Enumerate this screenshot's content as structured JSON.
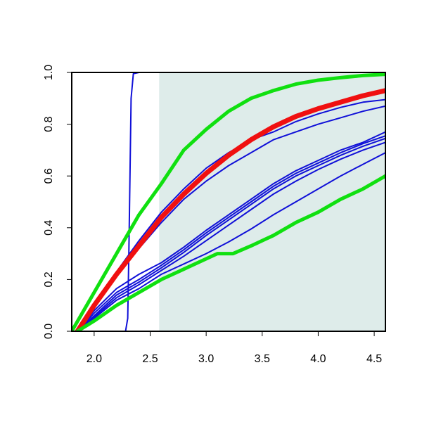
{
  "chart_data": {
    "type": "line",
    "title": "",
    "xlabel": "",
    "ylabel": "",
    "xlim": [
      1.8,
      4.6
    ],
    "ylim": [
      0.0,
      1.0
    ],
    "x_ticks": [
      2.0,
      2.5,
      3.0,
      3.5,
      4.0,
      4.5
    ],
    "x_tick_labels": [
      "2.0",
      "2.5",
      "3.0",
      "3.5",
      "4.0",
      "4.5"
    ],
    "y_ticks": [
      0.0,
      0.2,
      0.4,
      0.6,
      0.8,
      1.0
    ],
    "y_tick_labels": [
      "0.0",
      "0.2",
      "0.4",
      "0.6",
      "0.8",
      "1.0"
    ],
    "grid": false,
    "legend": "none",
    "shaded_region": {
      "x_from": 2.58,
      "x_to": 4.6,
      "color": "#deecea"
    },
    "colors": {
      "blue": "#1010d8",
      "red": "#f01010",
      "green": "#10e010"
    },
    "series": [
      {
        "color": "blue",
        "width": 2,
        "points": [
          [
            1.8,
            0.0
          ],
          [
            2.28,
            0.0
          ],
          [
            2.3,
            0.05
          ],
          [
            2.31,
            0.3
          ],
          [
            2.32,
            0.6
          ],
          [
            2.33,
            0.9
          ],
          [
            2.35,
            0.995
          ],
          [
            2.4,
            1.0
          ],
          [
            4.6,
            1.0
          ]
        ]
      },
      {
        "color": "blue",
        "width": 2,
        "points": [
          [
            1.85,
            0.0
          ],
          [
            2.0,
            0.104
          ],
          [
            2.2,
            0.23
          ],
          [
            2.4,
            0.35
          ],
          [
            2.6,
            0.46
          ],
          [
            2.8,
            0.55
          ],
          [
            3.0,
            0.63
          ],
          [
            3.2,
            0.69
          ],
          [
            3.4,
            0.74
          ],
          [
            3.6,
            0.77
          ],
          [
            3.8,
            0.81
          ],
          [
            4.0,
            0.84
          ],
          [
            4.2,
            0.865
          ],
          [
            4.4,
            0.885
          ],
          [
            4.6,
            0.895
          ]
        ]
      },
      {
        "color": "blue",
        "width": 2,
        "points": [
          [
            1.85,
            0.0
          ],
          [
            2.0,
            0.1
          ],
          [
            2.2,
            0.22
          ],
          [
            2.4,
            0.32
          ],
          [
            2.6,
            0.42
          ],
          [
            2.8,
            0.51
          ],
          [
            3.0,
            0.58
          ],
          [
            3.2,
            0.64
          ],
          [
            3.4,
            0.69
          ],
          [
            3.6,
            0.74
          ],
          [
            3.8,
            0.77
          ],
          [
            4.0,
            0.8
          ],
          [
            4.2,
            0.825
          ],
          [
            4.4,
            0.85
          ],
          [
            4.6,
            0.87
          ]
        ]
      },
      {
        "color": "blue",
        "width": 2,
        "points": [
          [
            1.85,
            0.0
          ],
          [
            2.0,
            0.08
          ],
          [
            2.2,
            0.165
          ],
          [
            2.4,
            0.22
          ],
          [
            2.6,
            0.265
          ],
          [
            2.8,
            0.325
          ],
          [
            3.0,
            0.39
          ],
          [
            3.2,
            0.45
          ],
          [
            3.4,
            0.51
          ],
          [
            3.6,
            0.57
          ],
          [
            3.8,
            0.62
          ],
          [
            4.0,
            0.66
          ],
          [
            4.2,
            0.7
          ],
          [
            4.4,
            0.73
          ],
          [
            4.6,
            0.77
          ]
        ]
      },
      {
        "color": "blue",
        "width": 2,
        "points": [
          [
            1.85,
            0.0
          ],
          [
            2.0,
            0.07
          ],
          [
            2.2,
            0.15
          ],
          [
            2.4,
            0.2
          ],
          [
            2.6,
            0.255
          ],
          [
            2.8,
            0.315
          ],
          [
            3.0,
            0.38
          ],
          [
            3.2,
            0.44
          ],
          [
            3.4,
            0.5
          ],
          [
            3.6,
            0.56
          ],
          [
            3.8,
            0.61
          ],
          [
            4.0,
            0.65
          ],
          [
            4.2,
            0.69
          ],
          [
            4.4,
            0.725
          ],
          [
            4.6,
            0.755
          ]
        ]
      },
      {
        "color": "blue",
        "width": 2,
        "points": [
          [
            1.85,
            0.0
          ],
          [
            2.0,
            0.06
          ],
          [
            2.2,
            0.14
          ],
          [
            2.4,
            0.19
          ],
          [
            2.6,
            0.245
          ],
          [
            2.8,
            0.305
          ],
          [
            3.0,
            0.37
          ],
          [
            3.2,
            0.43
          ],
          [
            3.4,
            0.49
          ],
          [
            3.6,
            0.55
          ],
          [
            3.8,
            0.6
          ],
          [
            4.0,
            0.64
          ],
          [
            4.2,
            0.68
          ],
          [
            4.4,
            0.715
          ],
          [
            4.6,
            0.745
          ]
        ]
      },
      {
        "color": "blue",
        "width": 2,
        "points": [
          [
            1.85,
            0.0
          ],
          [
            2.0,
            0.055
          ],
          [
            2.2,
            0.13
          ],
          [
            2.4,
            0.18
          ],
          [
            2.6,
            0.235
          ],
          [
            2.8,
            0.29
          ],
          [
            3.0,
            0.35
          ],
          [
            3.2,
            0.41
          ],
          [
            3.4,
            0.47
          ],
          [
            3.6,
            0.53
          ],
          [
            3.8,
            0.58
          ],
          [
            4.0,
            0.625
          ],
          [
            4.2,
            0.665
          ],
          [
            4.4,
            0.7
          ],
          [
            4.6,
            0.73
          ]
        ]
      },
      {
        "color": "blue",
        "width": 2,
        "points": [
          [
            1.85,
            0.0
          ],
          [
            2.0,
            0.05
          ],
          [
            2.2,
            0.12
          ],
          [
            2.4,
            0.165
          ],
          [
            2.6,
            0.22
          ],
          [
            2.8,
            0.26
          ],
          [
            3.0,
            0.3
          ],
          [
            3.2,
            0.345
          ],
          [
            3.4,
            0.395
          ],
          [
            3.6,
            0.45
          ],
          [
            3.8,
            0.5
          ],
          [
            4.0,
            0.55
          ],
          [
            4.2,
            0.6
          ],
          [
            4.4,
            0.645
          ],
          [
            4.6,
            0.69
          ]
        ]
      },
      {
        "color": "red",
        "width": 7,
        "points": [
          [
            1.85,
            0.0
          ],
          [
            2.0,
            0.1
          ],
          [
            2.2,
            0.22
          ],
          [
            2.4,
            0.33
          ],
          [
            2.6,
            0.44
          ],
          [
            2.8,
            0.53
          ],
          [
            3.0,
            0.61
          ],
          [
            3.2,
            0.68
          ],
          [
            3.4,
            0.74
          ],
          [
            3.6,
            0.79
          ],
          [
            3.8,
            0.83
          ],
          [
            4.0,
            0.86
          ],
          [
            4.2,
            0.885
          ],
          [
            4.4,
            0.91
          ],
          [
            4.6,
            0.93
          ]
        ]
      },
      {
        "color": "green",
        "width": 5,
        "points": [
          [
            1.8,
            0.0
          ],
          [
            2.0,
            0.15
          ],
          [
            2.2,
            0.3
          ],
          [
            2.4,
            0.45
          ],
          [
            2.6,
            0.57
          ],
          [
            2.8,
            0.7
          ],
          [
            3.0,
            0.78
          ],
          [
            3.2,
            0.85
          ],
          [
            3.4,
            0.9
          ],
          [
            3.6,
            0.93
          ],
          [
            3.8,
            0.955
          ],
          [
            4.0,
            0.97
          ],
          [
            4.2,
            0.98
          ],
          [
            4.4,
            0.988
          ],
          [
            4.6,
            0.993
          ]
        ]
      },
      {
        "color": "green",
        "width": 5,
        "points": [
          [
            1.85,
            0.0
          ],
          [
            2.0,
            0.04
          ],
          [
            2.2,
            0.1
          ],
          [
            2.4,
            0.15
          ],
          [
            2.6,
            0.2
          ],
          [
            2.8,
            0.24
          ],
          [
            3.0,
            0.28
          ],
          [
            3.1,
            0.3
          ],
          [
            3.2,
            0.3
          ],
          [
            3.24,
            0.3
          ],
          [
            3.4,
            0.33
          ],
          [
            3.6,
            0.37
          ],
          [
            3.8,
            0.42
          ],
          [
            4.0,
            0.46
          ],
          [
            4.2,
            0.51
          ],
          [
            4.4,
            0.55
          ],
          [
            4.6,
            0.6
          ]
        ]
      }
    ]
  }
}
